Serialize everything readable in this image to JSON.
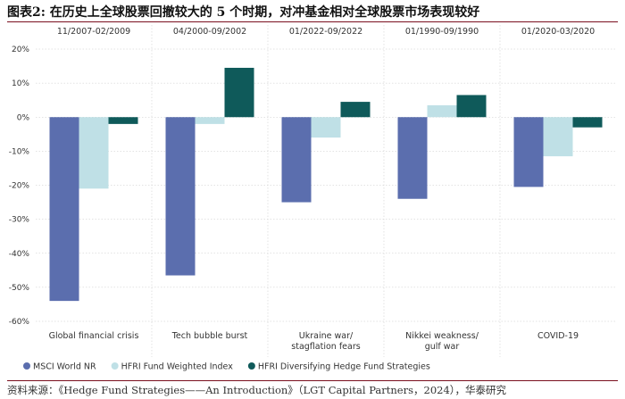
{
  "figure": {
    "title": "图表2:   在历史上全球股票回撤较大的 5 个时期，对冲基金相对全球股票市场表现较好",
    "source": "资料来源：《Hedge Fund Strategies——An Introduction》（LGT Capital Partners，2024），华泰研究"
  },
  "chart_data": {
    "type": "bar",
    "periods": [
      "11/2007-02/2009",
      "04/2000-09/2002",
      "01/2022-09/2022",
      "01/1990-09/1990",
      "01/2020-03/2020"
    ],
    "categories": [
      [
        "Global financial crisis"
      ],
      [
        "Tech bubble burst"
      ],
      [
        "Ukraine war/",
        "stagflation fears"
      ],
      [
        "Nikkei weakness/",
        "gulf war"
      ],
      [
        "COVID-19"
      ]
    ],
    "series": [
      {
        "name": "MSCI World NR",
        "color": "#5b6eae",
        "values": [
          -54,
          -46.5,
          -25,
          -24,
          -20.5
        ]
      },
      {
        "name": "HFRI Fund Weighted Index",
        "color": "#bfe0e6",
        "values": [
          -21,
          -2,
          -6,
          3.5,
          -11.5
        ]
      },
      {
        "name": "HFRI Diversifying Hedge Fund Strategies",
        "color": "#0f5a5a",
        "values": [
          -2,
          14.5,
          4.5,
          6.5,
          -3
        ]
      }
    ],
    "yticks": [
      "20%",
      "10%",
      "0%",
      "-10%",
      "-20%",
      "-30%",
      "-40%",
      "-50%",
      "-60%"
    ],
    "ylim": [
      -60,
      20
    ],
    "grid": true,
    "legend": "bottom-left"
  }
}
